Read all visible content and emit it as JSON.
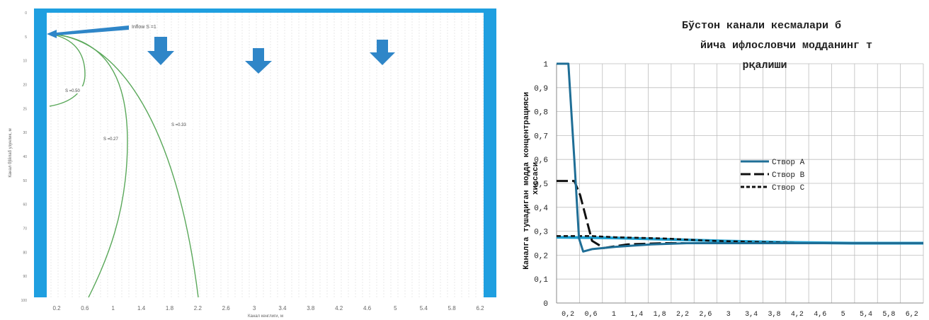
{
  "left_chart": {
    "xlabel": "Канал кенглиги, м",
    "ylabel": "Канал бўйлаб узунлик, м",
    "x_ticks": [
      "0.2",
      "0.6",
      "1",
      "1.4",
      "1.8",
      "2.2",
      "2.6",
      "3",
      "3.4",
      "3.8",
      "4.2",
      "4.6",
      "5",
      "5.4",
      "5.8",
      "6.2"
    ],
    "y_ticks": [
      "0",
      "5",
      "10",
      "20",
      "25",
      "30",
      "40",
      "50",
      "60",
      "70",
      "80",
      "90",
      "100"
    ],
    "inflow_label": "Inflow S =1",
    "curve_labels": [
      "S =0.50",
      "S =0.27",
      "S =0.33"
    ],
    "colors": {
      "bank": "#1f9fe0",
      "curve": "#5aa85a",
      "arrow": "#2f86c8",
      "grid": "#dcdcdc"
    },
    "icons": [
      "left-arrow-icon",
      "down-arrow-icon",
      "down-arrow-icon",
      "down-arrow-icon"
    ]
  },
  "chart_data": {
    "type": "line",
    "title": "Бўстон канали кесмалари бўйича ифлословчи модданинг тарқалиши",
    "ylabel": "Каналга тушадиган модда концентрацияси хиссаси",
    "xlabel": "",
    "x_tick_labels": [
      "0,2",
      "0,6",
      "1",
      "1,4",
      "1,8",
      "2,2",
      "2,6",
      "3",
      "3,4",
      "3,8",
      "4,2",
      "4,6",
      "5",
      "5,4",
      "5,8",
      "6,2"
    ],
    "y_tick_labels": [
      "0",
      "0,1",
      "0,2",
      "0,3",
      "0,4",
      "0,5",
      "0,6",
      "0,7",
      "0,8",
      "0,9",
      "1"
    ],
    "ylim": [
      0,
      1
    ],
    "xlim": [
      0,
      6.2
    ],
    "grid": true,
    "legend_position": "right",
    "series": [
      {
        "name": "Створ А",
        "color": "#1f6e96",
        "style": "solid",
        "points": [
          [
            0,
            1
          ],
          [
            0.2,
            1
          ],
          [
            0.3,
            0.6
          ],
          [
            0.38,
            0.27
          ],
          [
            0.45,
            0.215
          ],
          [
            0.6,
            0.225
          ],
          [
            1,
            0.235
          ],
          [
            1.6,
            0.245
          ],
          [
            2.2,
            0.25
          ],
          [
            3,
            0.25
          ],
          [
            4,
            0.25
          ],
          [
            5,
            0.25
          ],
          [
            6.2,
            0.25
          ]
        ]
      },
      {
        "name": "Створ В",
        "color": "#111111",
        "style": "long-dash",
        "points": [
          [
            0,
            0.51
          ],
          [
            0.3,
            0.51
          ],
          [
            0.4,
            0.45
          ],
          [
            0.6,
            0.26
          ],
          [
            0.8,
            0.23
          ],
          [
            1.2,
            0.245
          ],
          [
            1.8,
            0.25
          ],
          [
            3,
            0.25
          ],
          [
            4,
            0.25
          ],
          [
            5,
            0.25
          ],
          [
            6.2,
            0.25
          ]
        ]
      },
      {
        "name": "Створ С",
        "color": "#111111",
        "style": "short-dash",
        "points": [
          [
            0,
            0.28
          ],
          [
            0.6,
            0.28
          ],
          [
            1,
            0.275
          ],
          [
            1.8,
            0.27
          ],
          [
            2.6,
            0.26
          ],
          [
            3.4,
            0.255
          ],
          [
            4.2,
            0.25
          ],
          [
            5,
            0.25
          ],
          [
            6.2,
            0.25
          ]
        ]
      },
      {
        "name": "",
        "color": "#1fa0d0",
        "style": "solid-thick",
        "points": [
          [
            0,
            0.275
          ],
          [
            1,
            0.272
          ],
          [
            2,
            0.265
          ],
          [
            3,
            0.258
          ],
          [
            4,
            0.253
          ],
          [
            5,
            0.25
          ],
          [
            6.2,
            0.25
          ]
        ]
      }
    ]
  }
}
